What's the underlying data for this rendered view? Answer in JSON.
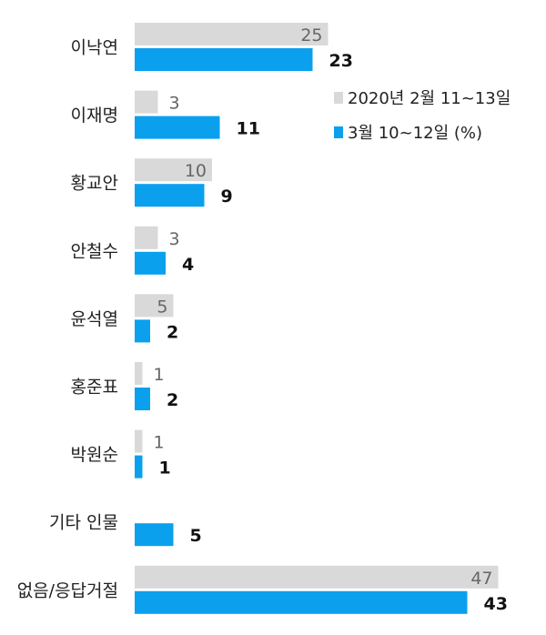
{
  "chart_data": {
    "type": "bar",
    "orientation": "horizontal",
    "categories": [
      "이낙연",
      "이재명",
      "황교안",
      "안철수",
      "윤석열",
      "홍준표",
      "박원순",
      "기타 인물",
      "없음/응답거절"
    ],
    "series": [
      {
        "name": "2020년 2월 11~13일",
        "values": [
          25,
          3,
          10,
          3,
          5,
          1,
          1,
          null,
          47
        ],
        "color": "#d9d9d9"
      },
      {
        "name": "3월 10~12일 (%)",
        "values": [
          23,
          11,
          9,
          4,
          2,
          2,
          1,
          5,
          43
        ],
        "color": "#0aa0ee"
      }
    ],
    "xlim": [
      0,
      47
    ],
    "grid": false,
    "legend": "top-right",
    "title": "",
    "xlabel": "",
    "ylabel": ""
  }
}
